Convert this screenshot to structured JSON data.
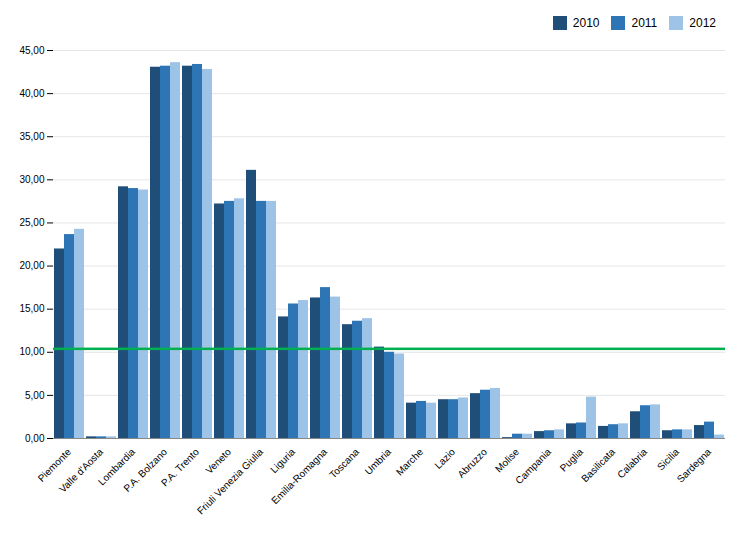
{
  "chart_data": {
    "type": "bar",
    "categories": [
      "Piemonte",
      "Valle d'Aosta",
      "Lombardia",
      "P.A. Bolzano",
      "P.A. Trento",
      "Veneto",
      "Friuli Venezia Giulia",
      "Liguria",
      "Emilia-Romagna",
      "Toscana",
      "Umbria",
      "Marche",
      "Lazio",
      "Abruzzo",
      "Molise",
      "Campania",
      "Puglia",
      "Basilicata",
      "Calabria",
      "Sicilia",
      "Sardegna"
    ],
    "series": [
      {
        "name": "2010",
        "color": "#1F4E79",
        "values": [
          21.98,
          0.19,
          29.19,
          43.06,
          43.18,
          27.2,
          31.1,
          14.1,
          16.3,
          13.2,
          10.6,
          4.1,
          4.5,
          5.2,
          0.1,
          0.8,
          1.7,
          1.4,
          3.1,
          0.9,
          1.5
        ]
      },
      {
        "name": "2011",
        "color": "#2E75B6",
        "values": [
          23.65,
          0.19,
          28.99,
          43.18,
          43.38,
          27.5,
          27.5,
          15.6,
          17.5,
          13.6,
          10.0,
          4.3,
          4.5,
          5.6,
          0.5,
          0.9,
          1.8,
          1.6,
          3.8,
          1.0,
          1.9
        ]
      },
      {
        "name": "2012",
        "color": "#9DC3E6",
        "values": [
          24.26,
          0.19,
          28.82,
          43.59,
          42.8,
          27.8,
          27.5,
          16.0,
          16.4,
          13.9,
          9.8,
          4.1,
          4.7,
          5.8,
          0.5,
          1.0,
          4.8,
          1.7,
          3.9,
          1.0,
          0.4
        ]
      }
    ],
    "reference_lines": [
      {
        "y": 10.4,
        "color": "#00B050"
      }
    ],
    "ylim": [
      0,
      45
    ],
    "yticks": [
      {
        "value": 0,
        "label": "0,00"
      },
      {
        "value": 5,
        "label": "5,00"
      },
      {
        "value": 10,
        "label": "10,00"
      },
      {
        "value": 15,
        "label": "15,00"
      },
      {
        "value": 20,
        "label": "20,00"
      },
      {
        "value": 25,
        "label": "25,00"
      },
      {
        "value": 30,
        "label": "30,00"
      },
      {
        "value": 35,
        "label": "35,00"
      },
      {
        "value": 40,
        "label": "40,00"
      },
      {
        "value": 45,
        "label": "45,00"
      }
    ],
    "grid": true,
    "legend": "upper right"
  }
}
